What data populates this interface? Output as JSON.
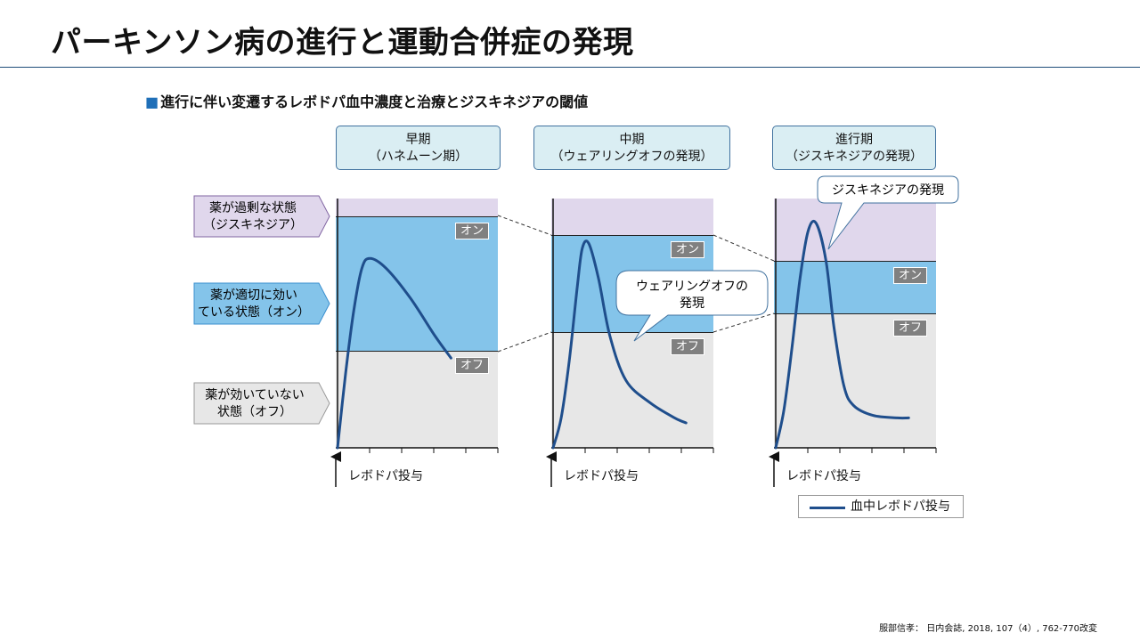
{
  "title": "パーキンソン病の進行と運動合併症の発現",
  "subtitle": {
    "bullet": "■",
    "text": "進行に伴い変遷するレボドパ血中濃度と治療とジスキネジアの閾値"
  },
  "states": [
    {
      "line1": "薬が過剰な状態",
      "line2": "（ジスキネジア）",
      "color": "#e0d7ec",
      "border": "#8064a2"
    },
    {
      "line1": "薬が適切に効い",
      "line2": "ている状態（オン）",
      "color": "#84c4ea",
      "border": "#3a8fcf"
    },
    {
      "line1": "薬が効いていない",
      "line2": "状態（オフ）",
      "color": "#e7e7e7",
      "border": "#9a9a9a"
    }
  ],
  "phases": [
    {
      "title": "早期",
      "subtitle": "（ハネムーン期）",
      "on_label": "オン",
      "off_label": "オフ",
      "axis_label": "レボドパ投与",
      "thresholds": {
        "dyskinesia": 0.93,
        "off": 0.39
      },
      "curve": [
        [
          0,
          0
        ],
        [
          0.05,
          0.3
        ],
        [
          0.1,
          0.55
        ],
        [
          0.15,
          0.72
        ],
        [
          0.2,
          0.76
        ],
        [
          0.3,
          0.72
        ],
        [
          0.45,
          0.6
        ],
        [
          0.6,
          0.45
        ],
        [
          0.7,
          0.36
        ]
      ]
    },
    {
      "title": "中期",
      "subtitle": "（ウェアリングオフの発現）",
      "on_label": "オン",
      "off_label": "オフ",
      "axis_label": "レボドパ投与",
      "thresholds": {
        "dyskinesia": 0.855,
        "off": 0.465
      },
      "curve": [
        [
          0,
          0
        ],
        [
          0.05,
          0.12
        ],
        [
          0.1,
          0.35
        ],
        [
          0.15,
          0.65
        ],
        [
          0.18,
          0.8
        ],
        [
          0.22,
          0.82
        ],
        [
          0.28,
          0.68
        ],
        [
          0.35,
          0.45
        ],
        [
          0.45,
          0.27
        ],
        [
          0.6,
          0.18
        ],
        [
          0.75,
          0.12
        ],
        [
          0.82,
          0.1
        ]
      ]
    },
    {
      "title": "進行期",
      "subtitle": "（ジスキネジアの発現）",
      "on_label": "オン",
      "off_label": "オフ",
      "axis_label": "レボドパ投与",
      "thresholds": {
        "dyskinesia": 0.75,
        "off": 0.54
      },
      "curve": [
        [
          0,
          0
        ],
        [
          0.05,
          0.15
        ],
        [
          0.1,
          0.4
        ],
        [
          0.15,
          0.68
        ],
        [
          0.2,
          0.87
        ],
        [
          0.25,
          0.9
        ],
        [
          0.31,
          0.75
        ],
        [
          0.36,
          0.48
        ],
        [
          0.42,
          0.25
        ],
        [
          0.48,
          0.17
        ],
        [
          0.6,
          0.13
        ],
        [
          0.75,
          0.12
        ],
        [
          0.82,
          0.12
        ]
      ]
    }
  ],
  "callouts": {
    "wearing_off": {
      "line1": "ウェアリングオフの",
      "line2": "発現"
    },
    "dyskinesia": "ジスキネジアの発現"
  },
  "legend": {
    "label": "血中レボドパ投与",
    "color": "#1f4e8c"
  },
  "source": "服部信孝： 日内会誌, 2018, 107（4）, 762-770改変"
}
